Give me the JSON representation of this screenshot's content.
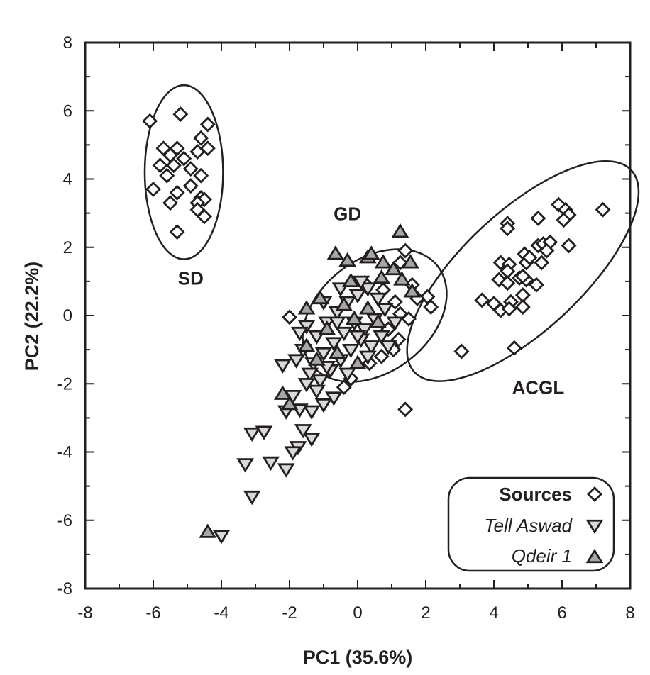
{
  "chart_data": {
    "type": "scatter",
    "title": "",
    "xlabel": "PC1 (35.6%)",
    "ylabel": "PC2 (22.2%)",
    "xlim": [
      -8,
      8
    ],
    "ylim": [
      -8,
      8
    ],
    "x_ticks": [
      "-8",
      "-6",
      "-4",
      "-2",
      "0",
      "2",
      "4",
      "6",
      "8"
    ],
    "y_ticks": [
      "8",
      "6",
      "4",
      "2",
      "0",
      "-2",
      "-4",
      "-6",
      "-8"
    ],
    "grid": false,
    "legend_position": "lower right",
    "colors": {
      "stroke": "#231f20",
      "sources_fill": "#ffffff",
      "tell_aswad_fill": "#d9d9d9",
      "qdeir_fill": "#a6a6a6"
    },
    "legend": [
      {
        "label": "Sources",
        "marker": "diamond",
        "style": "bold"
      },
      {
        "label": "Tell Aswad",
        "marker": "triangle-down",
        "style": "italic"
      },
      {
        "label": "Qdeir 1",
        "marker": "triangle-up",
        "style": "italic"
      }
    ],
    "ellipses": [
      {
        "label": "SD",
        "cx": -5.1,
        "cy": 4.2,
        "rx": 1.15,
        "ry": 2.55,
        "angle": 0,
        "label_pos": [
          -4.9,
          0.9
        ]
      },
      {
        "label": "GD",
        "cx": 0.5,
        "cy": 0.0,
        "rx": 2.35,
        "ry": 1.65,
        "angle": 38,
        "label_pos": [
          -0.3,
          2.8
        ]
      },
      {
        "label": "ACGL",
        "cx": 4.85,
        "cy": 1.3,
        "rx": 4.35,
        "ry": 1.75,
        "angle": 43,
        "label_pos": [
          5.3,
          -2.3
        ]
      }
    ],
    "series": [
      {
        "name": "Sources",
        "marker": "diamond",
        "points": [
          [
            -6.1,
            5.7
          ],
          [
            -5.2,
            5.9
          ],
          [
            -4.4,
            5.6
          ],
          [
            -4.6,
            5.2
          ],
          [
            -5.7,
            4.9
          ],
          [
            -5.3,
            4.9
          ],
          [
            -4.7,
            4.8
          ],
          [
            -4.4,
            4.9
          ],
          [
            -5.5,
            4.7
          ],
          [
            -5.1,
            4.6
          ],
          [
            -5.8,
            4.4
          ],
          [
            -5.4,
            4.4
          ],
          [
            -4.9,
            4.3
          ],
          [
            -5.6,
            4.1
          ],
          [
            -4.6,
            4.1
          ],
          [
            -4.9,
            3.8
          ],
          [
            -6.0,
            3.7
          ],
          [
            -5.3,
            3.6
          ],
          [
            -4.6,
            3.45
          ],
          [
            -4.5,
            3.4
          ],
          [
            -4.7,
            3.3
          ],
          [
            -5.5,
            3.3
          ],
          [
            -4.7,
            3.1
          ],
          [
            -4.5,
            2.9
          ],
          [
            -5.3,
            2.45
          ],
          [
            4.4,
            2.7
          ],
          [
            4.4,
            2.55
          ],
          [
            5.3,
            2.85
          ],
          [
            5.9,
            3.25
          ],
          [
            6.1,
            3.1
          ],
          [
            6.2,
            2.95
          ],
          [
            6.05,
            2.8
          ],
          [
            7.2,
            3.1
          ],
          [
            4.9,
            1.8
          ],
          [
            5.3,
            2.05
          ],
          [
            5.45,
            2.1
          ],
          [
            5.65,
            2.15
          ],
          [
            5.55,
            1.9
          ],
          [
            6.2,
            2.05
          ],
          [
            4.2,
            1.55
          ],
          [
            4.45,
            1.5
          ],
          [
            4.4,
            1.3
          ],
          [
            4.95,
            1.55
          ],
          [
            5.05,
            1.7
          ],
          [
            5.4,
            1.55
          ],
          [
            4.15,
            1.05
          ],
          [
            4.4,
            0.95
          ],
          [
            4.75,
            1.1
          ],
          [
            4.95,
            1.05
          ],
          [
            4.85,
            1.15
          ],
          [
            5.25,
            0.9
          ],
          [
            3.65,
            0.45
          ],
          [
            4.0,
            0.35
          ],
          [
            4.2,
            0.15
          ],
          [
            4.5,
            0.4
          ],
          [
            4.45,
            0.2
          ],
          [
            4.85,
            0.6
          ],
          [
            4.85,
            0.25
          ],
          [
            3.05,
            -1.05
          ],
          [
            4.6,
            -0.95
          ],
          [
            1.4,
            1.9
          ],
          [
            1.25,
            1.55
          ],
          [
            1.6,
            0.9
          ],
          [
            2.05,
            0.55
          ],
          [
            2.15,
            0.25
          ],
          [
            1.75,
            0.5
          ],
          [
            1.1,
            0.4
          ],
          [
            1.25,
            0.05
          ],
          [
            1.5,
            -0.1
          ],
          [
            0.9,
            -0.4
          ],
          [
            1.2,
            -0.7
          ],
          [
            1.05,
            -1.0
          ],
          [
            0.7,
            -1.2
          ],
          [
            0.35,
            -1.4
          ],
          [
            -0.4,
            -2.1
          ],
          [
            -0.2,
            -1.85
          ],
          [
            -2.0,
            -0.05
          ],
          [
            1.4,
            -2.75
          ],
          [
            0.2,
            0.95
          ],
          [
            0.75,
            0.75
          ]
        ]
      },
      {
        "name": "Tell Aswad",
        "marker": "triangle-down",
        "points": [
          [
            -2.2,
            -1.45
          ],
          [
            -1.0,
            -2.6
          ],
          [
            -0.7,
            -2.4
          ],
          [
            -0.3,
            -1.7
          ],
          [
            -1.35,
            -2.8
          ],
          [
            -1.7,
            -2.75
          ],
          [
            -2.1,
            -2.8
          ],
          [
            -1.9,
            -2.35
          ],
          [
            -3.1,
            -3.45
          ],
          [
            -2.75,
            -3.4
          ],
          [
            -1.6,
            -3.35
          ],
          [
            -1.35,
            -3.6
          ],
          [
            -1.75,
            -3.85
          ],
          [
            -1.9,
            -4.0
          ],
          [
            -3.3,
            -4.35
          ],
          [
            -2.55,
            -4.3
          ],
          [
            -2.1,
            -4.5
          ],
          [
            -3.1,
            -5.3
          ],
          [
            -4.0,
            -6.45
          ],
          [
            -1.5,
            -0.3
          ],
          [
            -1.2,
            -0.6
          ],
          [
            -0.9,
            -0.2
          ],
          [
            -0.6,
            0.1
          ],
          [
            -0.3,
            0.4
          ],
          [
            0.0,
            0.6
          ],
          [
            0.3,
            0.8
          ],
          [
            0.6,
            0.5
          ],
          [
            -1.6,
            -1.0
          ],
          [
            -1.3,
            -1.4
          ],
          [
            -1.0,
            -1.1
          ],
          [
            -0.7,
            -0.8
          ],
          [
            -0.4,
            -0.5
          ],
          [
            -0.1,
            -0.2
          ],
          [
            0.2,
            -0.4
          ],
          [
            0.5,
            -0.1
          ],
          [
            0.8,
            0.2
          ],
          [
            1.1,
            -0.2
          ],
          [
            -1.4,
            -1.7
          ],
          [
            -1.1,
            -1.9
          ],
          [
            -0.8,
            -1.6
          ],
          [
            -0.5,
            -1.3
          ],
          [
            -0.2,
            -1.0
          ],
          [
            0.1,
            -0.7
          ],
          [
            0.4,
            -0.9
          ],
          [
            0.7,
            -0.6
          ],
          [
            -1.7,
            -0.5
          ],
          [
            -1.0,
            0.4
          ],
          [
            -0.5,
            0.8
          ],
          [
            0.1,
            1.0
          ],
          [
            -0.9,
            -1.5
          ],
          [
            0.3,
            -1.2
          ],
          [
            -1.8,
            -1.3
          ],
          [
            -1.5,
            -2.0
          ],
          [
            -1.2,
            -2.2
          ],
          [
            -0.6,
            -0.2
          ],
          [
            0.0,
            -0.6
          ],
          [
            0.9,
            -0.9
          ]
        ]
      },
      {
        "name": "Qdeir 1",
        "marker": "triangle-up",
        "points": [
          [
            1.25,
            2.45
          ],
          [
            -0.65,
            1.8
          ],
          [
            -0.3,
            1.6
          ],
          [
            0.3,
            1.7
          ],
          [
            0.4,
            1.8
          ],
          [
            0.75,
            1.55
          ],
          [
            1.05,
            1.35
          ],
          [
            1.55,
            1.55
          ],
          [
            1.3,
            1.05
          ],
          [
            1.6,
            0.7
          ],
          [
            0.7,
            1.1
          ],
          [
            -0.2,
            1.0
          ],
          [
            -1.5,
            0.2
          ],
          [
            -1.1,
            0.5
          ],
          [
            -0.4,
            0.3
          ],
          [
            0.3,
            0.2
          ],
          [
            0.6,
            -0.2
          ],
          [
            -0.9,
            -0.4
          ],
          [
            -0.1,
            -0.1
          ],
          [
            -1.5,
            -0.9
          ],
          [
            -1.2,
            -1.3
          ],
          [
            -0.6,
            -1.1
          ],
          [
            0.0,
            -1.4
          ],
          [
            -2.2,
            -2.3
          ],
          [
            -2.0,
            -2.6
          ],
          [
            -4.4,
            -6.35
          ]
        ]
      }
    ]
  }
}
